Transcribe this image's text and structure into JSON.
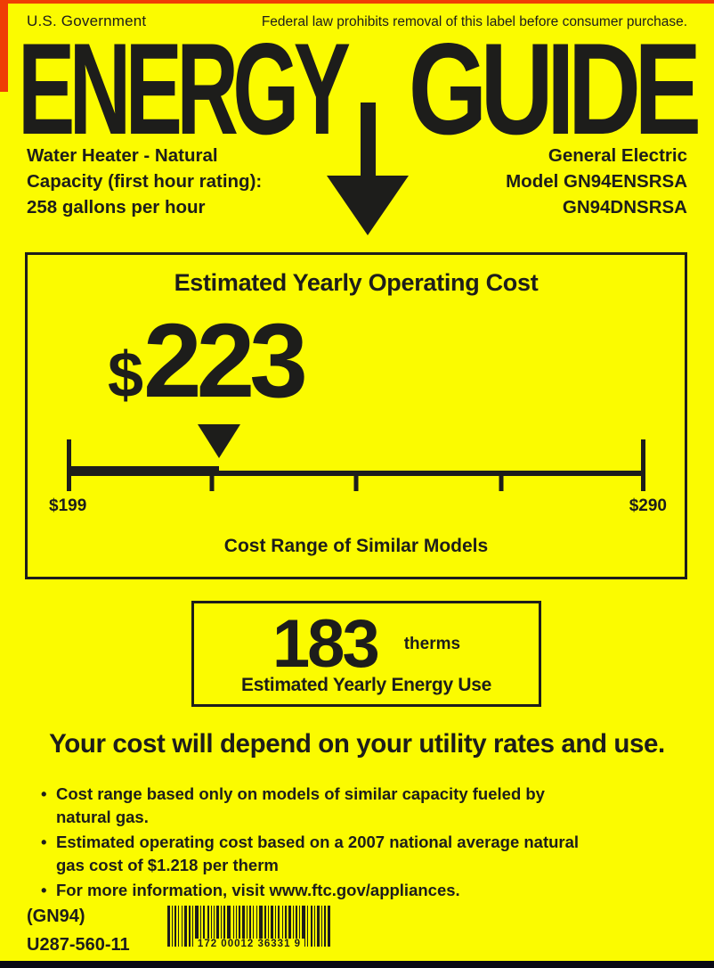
{
  "colors": {
    "background": "#FBFB00",
    "ink": "#1D1D1B",
    "edge_red": "#EF3D05"
  },
  "header": {
    "government": "U.S. Government",
    "federal_notice": "Federal law prohibits removal of this label before consumer purchase."
  },
  "title": {
    "word1": "ENERGY",
    "word2": "GUIDE"
  },
  "product": {
    "type_line": "Water Heater - Natural",
    "capacity_label": "Capacity (first hour rating):",
    "capacity_value": "258 gallons per hour"
  },
  "manufacturer": {
    "name": "General Electric",
    "model_line1": "Model GN94ENSRSA",
    "model_line2": "GN94DNSRSA"
  },
  "cost_box": {
    "title": "Estimated Yearly Operating Cost",
    "currency_symbol": "$",
    "value_text": "223",
    "range_min_label": "$199",
    "range_max_label": "$290",
    "caption": "Cost Range of Similar Models",
    "scale": {
      "min": 199,
      "max": 290,
      "value": 223,
      "quarter_tick_percents": [
        25,
        50,
        75
      ]
    }
  },
  "energy_box": {
    "value": "183",
    "unit": "therms",
    "caption": "Estimated Yearly Energy Use"
  },
  "disclaimer": "Your cost will depend on your utility rates and use.",
  "bullet_glyph": "•",
  "notes": [
    "Cost range based only on models of similar capacity fueled by natural gas.",
    "Estimated operating cost based on a 2007 national average natural gas cost of $1.218 per therm",
    "For more information, visit www.ftc.gov/appliances."
  ],
  "footer": {
    "model_code": "(GN94)",
    "label_code": "U287-560-11",
    "barcode_digits": "172 00012 36331 9"
  }
}
